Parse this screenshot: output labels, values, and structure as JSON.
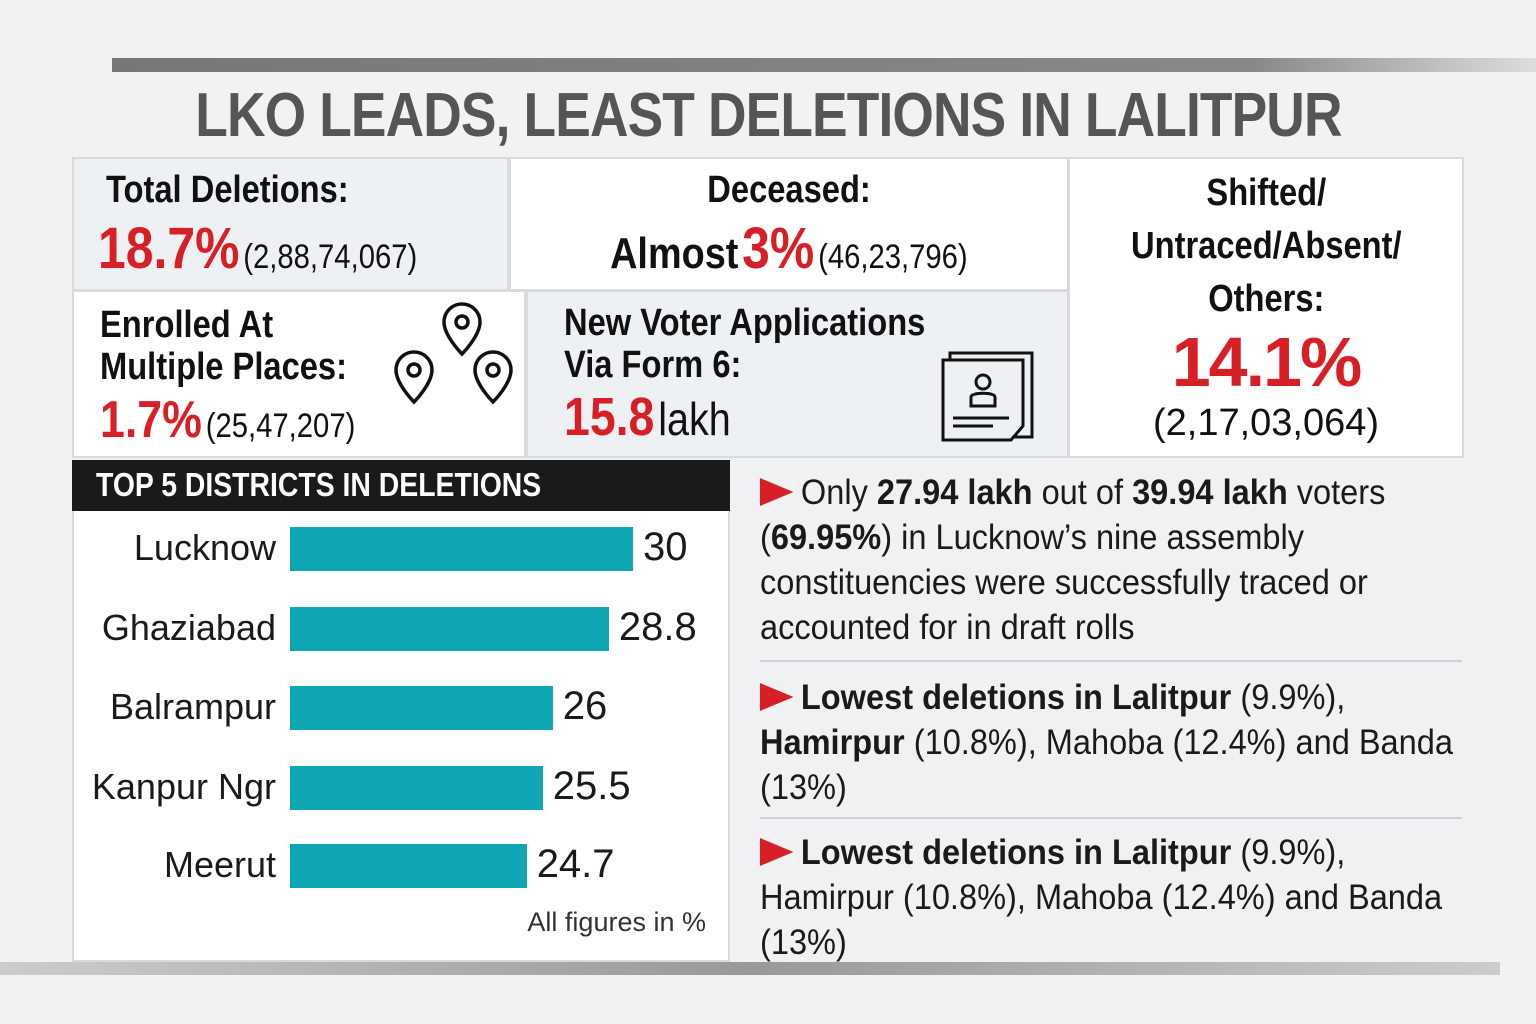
{
  "title": "LKO LEADS, LEAST DELETIONS IN LALITPUR",
  "stats": {
    "total": {
      "label": "Total Deletions:",
      "pct": "18.7%",
      "count": "(2,88,74,067)"
    },
    "deceased": {
      "label": "Deceased:",
      "prefix": "Almost",
      "pct": "3%",
      "count": "(46,23,796)"
    },
    "shifted": {
      "label_1": "Shifted/",
      "label_2": "Untraced/Absent/",
      "label_3": "Others:",
      "pct": "14.1%",
      "count": "(2,17,03,064)"
    },
    "multiple": {
      "label_1": "Enrolled At",
      "label_2": "Multiple Places:",
      "pct": "1.7%",
      "count": "(25,47,207)"
    },
    "new_voters": {
      "label_1": "New Voter Applications",
      "label_2": "Via Form 6:",
      "value": "15.8",
      "unit": "lakh"
    }
  },
  "colors": {
    "accent_red": "#d81f26",
    "bar": "#0ea6b3",
    "header_bg": "#1a1a1a"
  },
  "chart_data": {
    "type": "bar",
    "orientation": "horizontal",
    "title": "TOP 5 DISTRICTS IN DELETIONS",
    "categories": [
      "Lucknow",
      "Ghaziabad",
      "Balrampur",
      "Kanpur Ngr",
      "Meerut"
    ],
    "values": [
      30,
      28.8,
      26,
      25.5,
      24.7
    ],
    "value_labels": [
      "30",
      "28.8",
      "26",
      "25.5",
      "24.7"
    ],
    "note": "All figures in %",
    "grid": false
  },
  "points": [
    {
      "parts": [
        {
          "t": "Only ",
          "b": false
        },
        {
          "t": "27.94 lakh",
          "b": true
        },
        {
          "t": " out of ",
          "b": false
        },
        {
          "t": "39.94 lakh",
          "b": true
        },
        {
          "t": " voters (",
          "b": false
        },
        {
          "t": "69.95%",
          "b": true
        },
        {
          "t": ") in Lucknow’s nine assembly constituencies were successfully traced or accounted for in draft rolls",
          "b": false
        }
      ]
    },
    {
      "parts": [
        {
          "t": "Lowest deletions in Lalitpur",
          "b": true
        },
        {
          "t": " (9.9%), ",
          "b": false
        },
        {
          "t": "Hamirpur",
          "b": true
        },
        {
          "t": " (10.8%), Mahoba (12.4%) and Banda (13%)",
          "b": false
        }
      ]
    },
    {
      "parts": [
        {
          "t": "Lowest deletions in Lalitpur",
          "b": true
        },
        {
          "t": " (9.9%), Hamirpur (10.8%), Mahoba (12.4%) and Banda (13%)",
          "b": false
        }
      ]
    }
  ]
}
